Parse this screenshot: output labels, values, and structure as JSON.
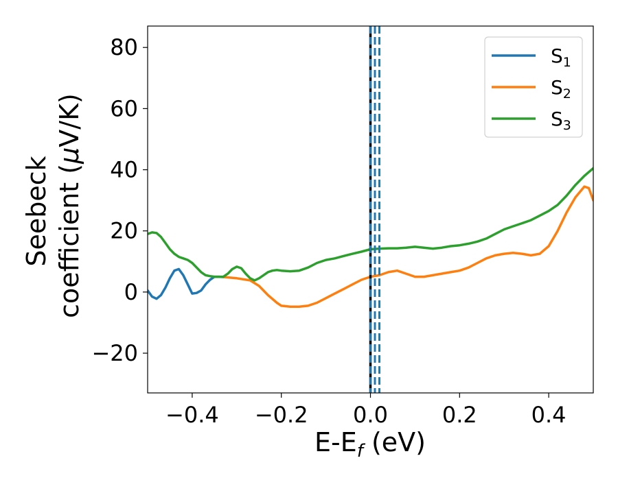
{
  "chart_data": {
    "type": "line",
    "xlabel": {
      "main": "E-E",
      "sub": "f",
      "rest": " (eV)"
    },
    "ylabel": {
      "line1": "Seebeck",
      "line2": "coefficient  (",
      "mu": "μ",
      "line2_end": "V/K)"
    },
    "xlim": [
      -0.5,
      0.5
    ],
    "ylim": [
      -33,
      87
    ],
    "xticks": [
      -0.4,
      -0.2,
      0.0,
      0.2,
      0.4
    ],
    "xtick_labels": [
      "−0.4",
      "−0.2",
      "0.0",
      "0.2",
      "0.4"
    ],
    "yticks": [
      -20,
      0,
      20,
      40,
      60,
      80
    ],
    "ytick_labels": [
      "−20",
      "0",
      "20",
      "40",
      "60",
      "80"
    ],
    "grid": false,
    "legend_position": "top-right",
    "vlines": [
      {
        "x": 0.0,
        "color": "#000000",
        "style": "solid"
      },
      {
        "x": 0.0,
        "color": "#1f77b4",
        "style": "dashed"
      },
      {
        "x": 0.01,
        "color": "#1f77b4",
        "style": "dashed"
      },
      {
        "x": 0.02,
        "color": "#1f77b4",
        "style": "dashed"
      }
    ],
    "series": [
      {
        "name": "S",
        "sub": "1",
        "color": "#1f77b4",
        "x": [
          -0.5,
          -0.49,
          -0.48,
          -0.47,
          -0.46,
          -0.45,
          -0.44,
          -0.43,
          -0.42,
          -0.41,
          -0.4,
          -0.39,
          -0.38,
          -0.37,
          -0.36,
          -0.35,
          -0.34,
          -0.33
        ],
        "y": [
          0.5,
          -1.5,
          -2.2,
          -1.0,
          1.5,
          4.5,
          7.0,
          7.5,
          5.5,
          2.5,
          -0.5,
          -0.3,
          0.5,
          2.5,
          4.0,
          5.0,
          5.0,
          4.9
        ]
      },
      {
        "name": "S",
        "sub": "2",
        "color": "#ff7f0e",
        "x": [
          -0.33,
          -0.3,
          -0.27,
          -0.25,
          -0.23,
          -0.21,
          -0.2,
          -0.18,
          -0.16,
          -0.14,
          -0.12,
          -0.1,
          -0.08,
          -0.06,
          -0.04,
          -0.02,
          0.0,
          0.02,
          0.04,
          0.06,
          0.08,
          0.1,
          0.12,
          0.14,
          0.16,
          0.18,
          0.2,
          0.22,
          0.24,
          0.26,
          0.28,
          0.3,
          0.32,
          0.34,
          0.36,
          0.38,
          0.4,
          0.42,
          0.44,
          0.46,
          0.48,
          0.49,
          0.5
        ],
        "y": [
          4.9,
          4.5,
          3.8,
          2.0,
          -1.0,
          -3.5,
          -4.5,
          -4.8,
          -4.8,
          -4.5,
          -3.5,
          -2.0,
          -0.5,
          1.0,
          2.5,
          4.0,
          5.0,
          5.5,
          6.5,
          7.0,
          6.0,
          5.0,
          5.0,
          5.5,
          6.0,
          6.5,
          7.0,
          8.0,
          9.5,
          11.0,
          12.0,
          12.5,
          12.8,
          12.5,
          12.0,
          12.5,
          15.0,
          20.0,
          26.0,
          31.0,
          34.5,
          34.0,
          30.0
        ]
      },
      {
        "name": "S",
        "sub": "3",
        "color": "#2ca02c",
        "x": [
          -0.5,
          -0.49,
          -0.48,
          -0.47,
          -0.46,
          -0.45,
          -0.44,
          -0.43,
          -0.42,
          -0.41,
          -0.4,
          -0.39,
          -0.38,
          -0.37,
          -0.36,
          -0.35,
          -0.34,
          -0.33,
          -0.32,
          -0.31,
          -0.3,
          -0.29,
          -0.28,
          -0.27,
          -0.26,
          -0.25,
          -0.24,
          -0.23,
          -0.22,
          -0.21,
          -0.2,
          -0.18,
          -0.16,
          -0.14,
          -0.12,
          -0.1,
          -0.08,
          -0.06,
          -0.04,
          -0.02,
          0.0,
          0.02,
          0.04,
          0.06,
          0.08,
          0.1,
          0.12,
          0.14,
          0.16,
          0.18,
          0.2,
          0.22,
          0.24,
          0.26,
          0.28,
          0.3,
          0.32,
          0.34,
          0.36,
          0.38,
          0.4,
          0.42,
          0.44,
          0.46,
          0.48,
          0.5
        ],
        "y": [
          19.0,
          19.5,
          19.3,
          18.0,
          16.0,
          14.0,
          12.5,
          11.5,
          11.0,
          10.5,
          9.5,
          8.0,
          6.5,
          5.5,
          5.2,
          5.0,
          5.0,
          5.0,
          6.0,
          7.5,
          8.3,
          7.8,
          6.0,
          4.5,
          3.8,
          4.5,
          5.5,
          6.5,
          7.0,
          7.2,
          7.0,
          6.8,
          7.0,
          8.0,
          9.5,
          10.5,
          11.0,
          11.8,
          12.5,
          13.2,
          14.0,
          14.2,
          14.3,
          14.3,
          14.5,
          14.8,
          14.5,
          14.2,
          14.5,
          15.0,
          15.3,
          15.8,
          16.5,
          17.5,
          19.0,
          20.5,
          21.5,
          22.5,
          23.5,
          25.0,
          26.5,
          28.5,
          31.5,
          35.0,
          38.0,
          40.5
        ]
      }
    ]
  }
}
